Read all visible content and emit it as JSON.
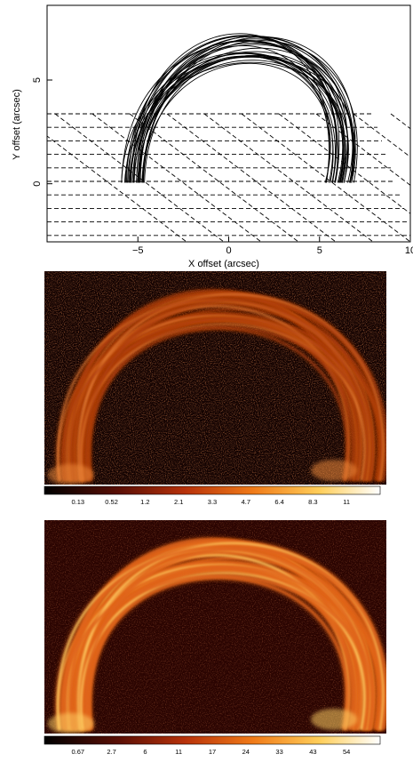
{
  "chart_data": [
    {
      "type": "line",
      "xlabel": "X offset (arcsec)",
      "ylabel": "Y offset (arcsec)",
      "xlim": [
        -10,
        10
      ],
      "ylim": [
        -2.8,
        8.6
      ],
      "xticks": [
        "−5",
        "0",
        "5",
        "10"
      ],
      "xtick_values": [
        -5,
        0,
        5,
        10
      ],
      "yticks": [
        "0",
        "5"
      ],
      "ytick_values": [
        0,
        5
      ],
      "loops": {
        "count": 30,
        "footpoint_left_x_range": [
          -5.9,
          -4.6
        ],
        "footpoint_right_x_range": [
          5.1,
          6.9
        ],
        "apex_y_range": [
          6.0,
          7.5
        ]
      },
      "grid": {
        "style": "dashed",
        "description": "inclined dashed grid in perspective below the loops",
        "y_range": [
          -2.8,
          3.5
        ]
      }
    },
    {
      "type": "heatmap",
      "colormap": "black-red-orange-yellow-white",
      "colorbar_ticks": [
        "0.13",
        "0.52",
        "1.2",
        "2.1",
        "3.3",
        "4.7",
        "6.4",
        "8.3",
        "11"
      ]
    },
    {
      "type": "heatmap",
      "colormap": "black-red-orange-yellow-white",
      "colorbar_ticks": [
        "0.67",
        "2.7",
        "6",
        "11",
        "17",
        "24",
        "33",
        "43",
        "54"
      ]
    }
  ]
}
